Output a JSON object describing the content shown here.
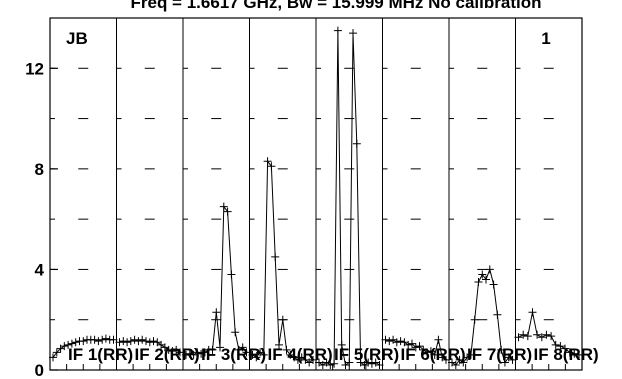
{
  "title": "Freq = 1.6617 GHz, Bw = 15.999 MHz   No calibration",
  "antenna_label": "JB",
  "plot_number": "1",
  "chart_data": {
    "type": "line",
    "title": "Freq = 1.6617 GHz, Bw = 15.999 MHz   No calibration",
    "xlabel": "",
    "ylabel": "",
    "ylim": [
      0,
      14
    ],
    "yticks": [
      0,
      4,
      8,
      12
    ],
    "grid": true,
    "legend": "none",
    "series": [
      {
        "name": "IF 1(RR)",
        "values": [
          0.5,
          0.7,
          0.85,
          0.95,
          1.0,
          1.05,
          1.1,
          1.15,
          1.15,
          1.2,
          1.2,
          1.2,
          1.15,
          1.2,
          1.25,
          1.2,
          1.2
        ]
      },
      {
        "name": "IF 2(RR)",
        "values": [
          1.1,
          1.15,
          1.1,
          1.15,
          1.2,
          1.15,
          1.2,
          1.15,
          1.1,
          1.15,
          1.1,
          1.0,
          0.9,
          0.8,
          0.75,
          0.8,
          0.7
        ]
      },
      {
        "name": "IF 3(RR)",
        "values": [
          0.6,
          0.65,
          0.6,
          0.7,
          0.65,
          0.7,
          0.8,
          0.8,
          2.3,
          0.9,
          6.5,
          6.3,
          3.8,
          1.5,
          0.8,
          0.9,
          0.7
        ]
      },
      {
        "name": "IF 4(RR)",
        "values": [
          0.6,
          0.5,
          0.7,
          0.6,
          8.3,
          8.1,
          4.5,
          1.0,
          2.0,
          0.8,
          0.6,
          0.5,
          0.4,
          0.5,
          0.4,
          0.3,
          0.4
        ]
      },
      {
        "name": "IF 5(RR)",
        "values": [
          0.3,
          0.2,
          0.3,
          0.2,
          0.25,
          13.5,
          1.0,
          0.2,
          0.3,
          13.4,
          9.0,
          0.3,
          0.2,
          0.3,
          0.25,
          0.3,
          0.2
        ]
      },
      {
        "name": "IF 6(RR)",
        "values": [
          1.2,
          1.15,
          1.2,
          1.1,
          1.15,
          1.1,
          1.0,
          1.05,
          0.9,
          0.95,
          0.8,
          0.7,
          0.75,
          0.6,
          1.2,
          0.5,
          0.4
        ]
      },
      {
        "name": "IF 7(RR)",
        "values": [
          0.3,
          0.2,
          0.4,
          0.3,
          0.5,
          0.6,
          2.0,
          3.5,
          3.8,
          3.6,
          4.0,
          3.4,
          2.2,
          0.8,
          0.3,
          0.5,
          0.4
        ]
      },
      {
        "name": "IF 8(RR)",
        "values": [
          1.3,
          1.4,
          1.35,
          2.3,
          1.4,
          1.3,
          1.4,
          1.35,
          1.0,
          0.95,
          0.85,
          0.7,
          0.65,
          0.6
        ]
      }
    ]
  }
}
